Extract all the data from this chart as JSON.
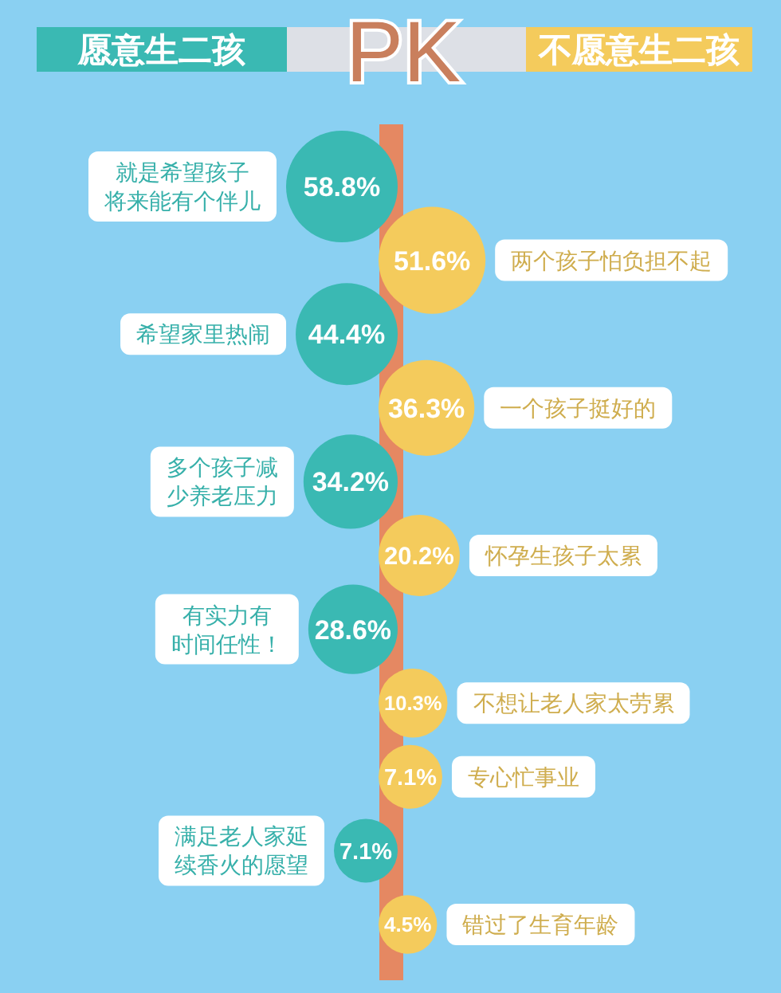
{
  "chart_data": {
    "type": "other",
    "title": "PK",
    "legend": "top",
    "categories": [
      "就是希望孩子将来能有个伴儿",
      "两个孩子怕负担不起",
      "希望家里热闹",
      "一个孩子挺好的",
      "多个孩子减少养老压力",
      "怀孕生孩子太累",
      "有实力有时间任性！",
      "不想让老人家太劳累",
      "专心忙事业",
      "满足老人家延续香火的愿望",
      "错过了生育年龄"
    ],
    "series": [
      {
        "name": "愿意生二孩",
        "color": "#3ab9b3",
        "values": [
          58.8,
          null,
          44.4,
          null,
          34.2,
          null,
          28.6,
          null,
          null,
          7.1,
          null
        ],
        "value_labels": [
          "58.8%",
          null,
          "44.4%",
          null,
          "34.2%",
          null,
          "28.6%",
          null,
          null,
          "7.1%",
          null
        ]
      },
      {
        "name": "不愿意生二孩",
        "color": "#f4cb5c",
        "values": [
          null,
          51.6,
          null,
          36.3,
          null,
          20.2,
          null,
          10.3,
          7.1,
          null,
          4.5
        ],
        "value_labels": [
          null,
          "51.6%",
          null,
          "36.3%",
          null,
          "20.2%",
          null,
          "10.3%",
          "7.1%",
          null,
          "4.5%"
        ]
      }
    ]
  }
}
